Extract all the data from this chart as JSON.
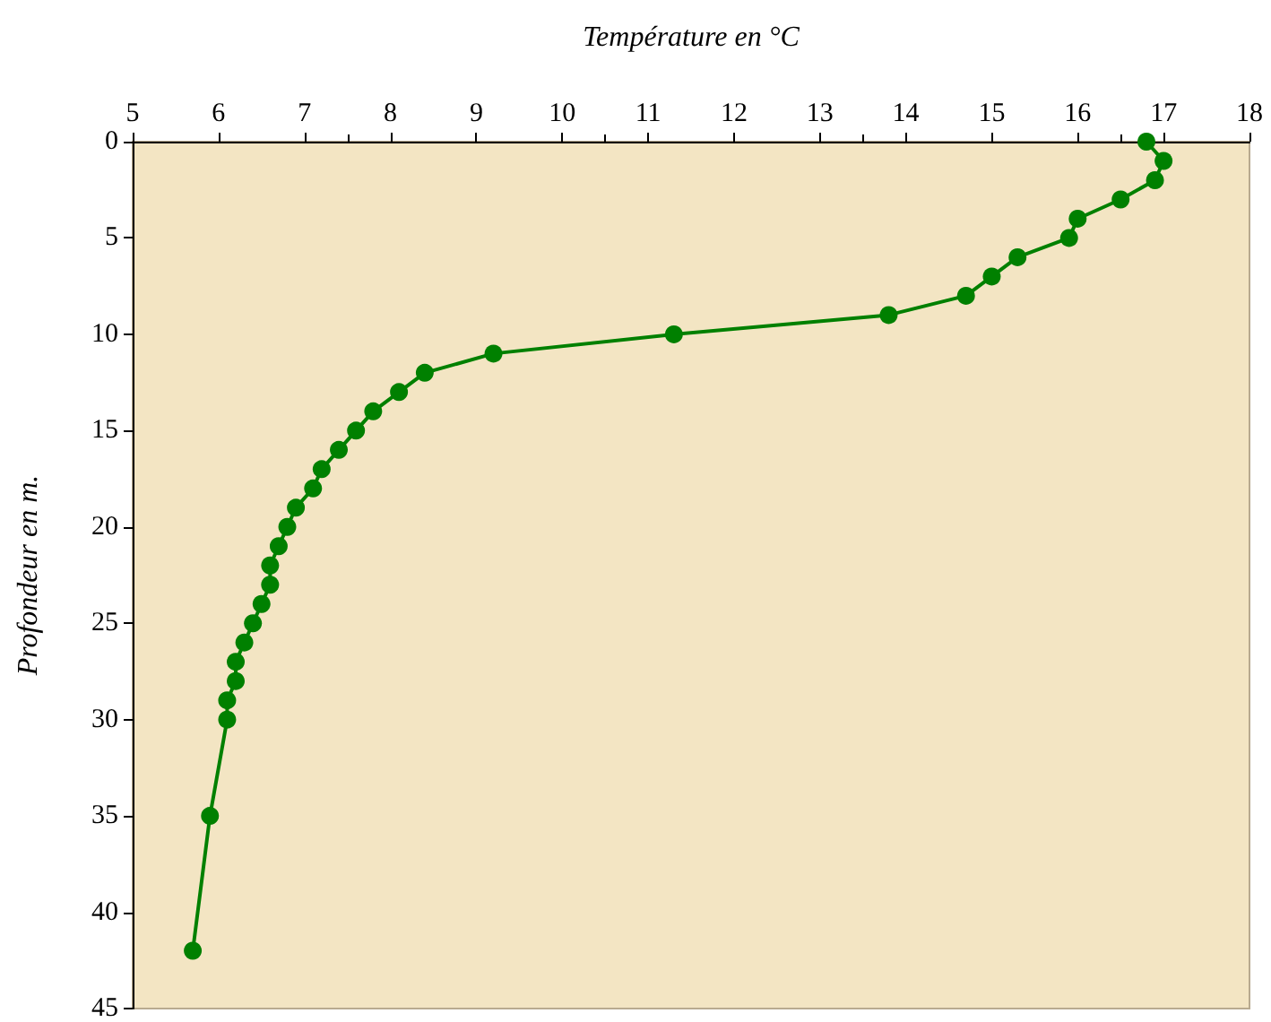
{
  "chart_data": {
    "type": "line",
    "xlabel": "Température en °C",
    "ylabel": "Profondeur en m.",
    "x": [
      16.8,
      17.0,
      16.9,
      16.5,
      16.0,
      15.9,
      15.3,
      15.0,
      14.7,
      13.8,
      11.3,
      9.2,
      8.4,
      8.1,
      7.8,
      7.6,
      7.4,
      7.2,
      7.1,
      6.9,
      6.8,
      6.7,
      6.6,
      6.6,
      6.5,
      6.4,
      6.3,
      6.2,
      6.2,
      6.1,
      6.1,
      5.9,
      5.7
    ],
    "series": [
      {
        "color": "#008000",
        "values": [
          0,
          1,
          2,
          3,
          4,
          5,
          6,
          7,
          8,
          9,
          10,
          11,
          12,
          13,
          14,
          15,
          16,
          17,
          18,
          19,
          20,
          21,
          22,
          23,
          24,
          25,
          26,
          27,
          28,
          29,
          30,
          35,
          42
        ]
      }
    ],
    "xlim": [
      5,
      18
    ],
    "xticks": [
      5,
      6,
      7,
      8,
      9,
      10,
      11,
      12,
      13,
      14,
      15,
      16,
      17,
      18
    ],
    "ylim": [
      45,
      0
    ],
    "yticks": [
      0,
      5,
      10,
      15,
      20,
      25,
      30,
      35,
      40,
      45
    ],
    "marker": "circle",
    "line_style": "solid"
  }
}
